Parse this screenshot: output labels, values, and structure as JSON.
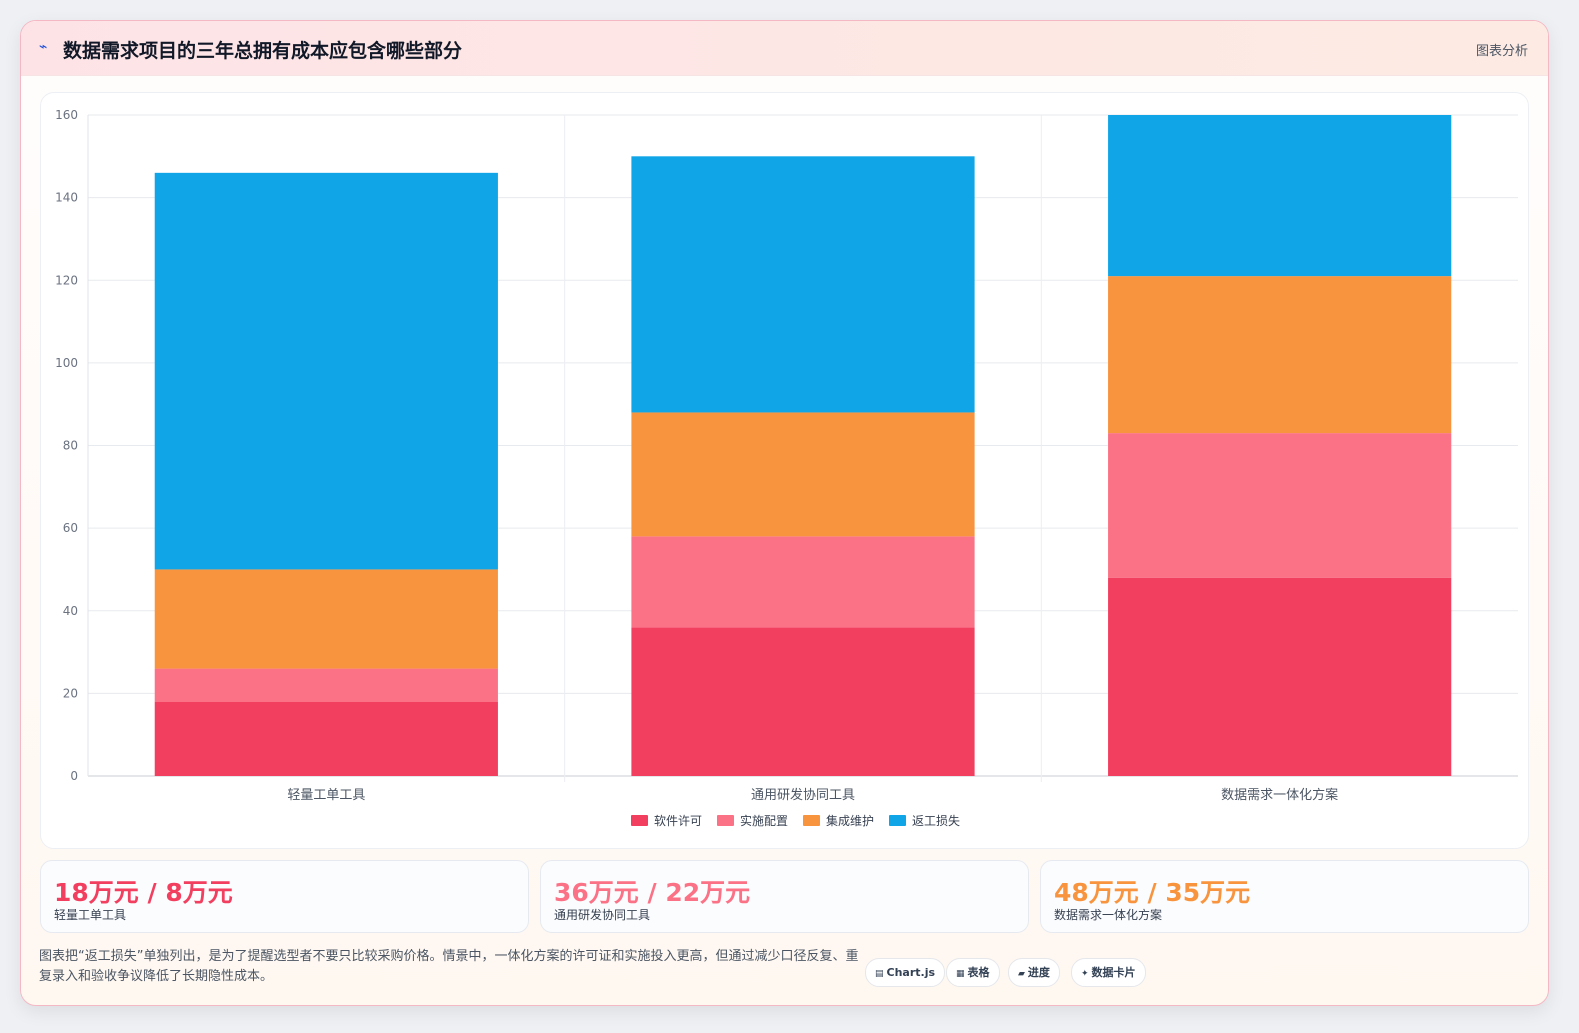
{
  "header": {
    "icon": "chart-line-icon",
    "title": "数据需求项目的三年总拥有成本应包含哪些部分",
    "link_label": "图表分析"
  },
  "chart_data": {
    "type": "bar",
    "stacked": true,
    "categories": [
      "轻量工单工具",
      "通用研发协同工具",
      "数据需求一体化方案"
    ],
    "series": [
      {
        "name": "软件许可",
        "color": "#f23f5f",
        "values": [
          18,
          36,
          48
        ]
      },
      {
        "name": "实施配置",
        "color": "#fb7185",
        "values": [
          8,
          22,
          35
        ]
      },
      {
        "name": "集成维护",
        "color": "#f9943e",
        "values": [
          24,
          30,
          38
        ]
      },
      {
        "name": "返工损失",
        "color": "#10a5e7",
        "values": [
          96,
          62,
          39
        ]
      }
    ],
    "ylim": [
      0,
      160
    ],
    "yticks": [
      0,
      20,
      40,
      60,
      80,
      100,
      120,
      140,
      160
    ],
    "grid": true,
    "legend": "bottom-center",
    "title": "",
    "xlabel": "",
    "ylabel": ""
  },
  "kpis": [
    {
      "value": "18万元 / 8万元",
      "label": "轻量工单工具",
      "color": "#f23f5f"
    },
    {
      "value": "36万元 / 22万元",
      "label": "通用研发协同工具",
      "color": "#fb7185"
    },
    {
      "value": "48万元 / 35万元",
      "label": "数据需求一体化方案",
      "color": "#f9943e"
    }
  ],
  "note": "图表把“返工损失”单独列出，是为了提醒选型者不要只比较采购价格。情景中，一体化方案的许可证和实施投入更高，但通过减少口径反复、重复录入和验收争议降低了长期隐性成本。",
  "chips": [
    {
      "icon": "chart-icon",
      "glyph": "▤",
      "label": "Chart.js"
    },
    {
      "icon": "table-icon",
      "glyph": "▦",
      "label": "表格"
    },
    {
      "icon": "progress-icon",
      "glyph": "▰",
      "label": "进度"
    },
    {
      "icon": "sparkle-icon",
      "glyph": "✦",
      "label": "数据卡片"
    }
  ]
}
